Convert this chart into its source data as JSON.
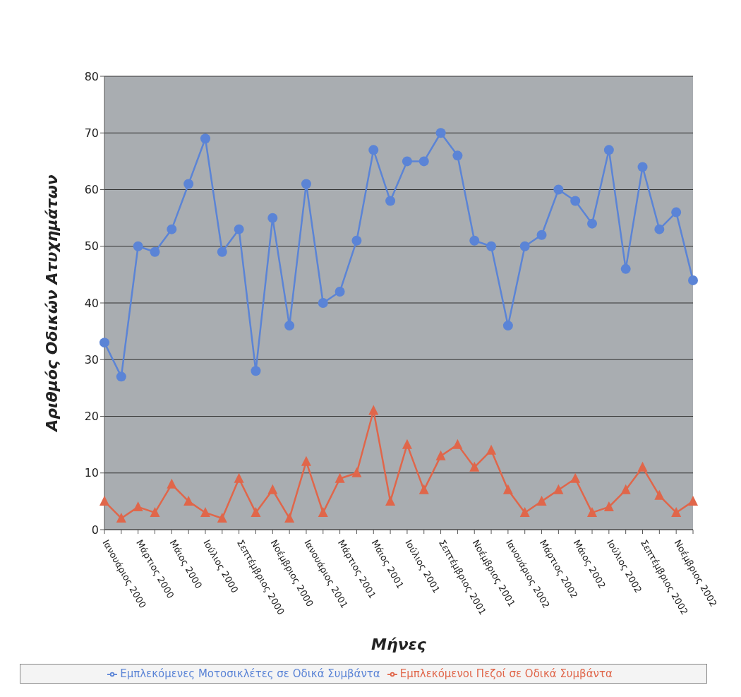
{
  "chart_data": {
    "type": "line",
    "xlabel": "Μήνες",
    "ylabel": "Αριθμός Οδικών Ατυχημάτων",
    "categories": [
      "Ιανουάριος 2000",
      null,
      "Μάρτιος 2000",
      null,
      "Μάιος 2000",
      null,
      "Ιούλιος 2000",
      null,
      "Σεπτέμβριος 2000",
      null,
      "Νοέμβριος 2000",
      null,
      "Ιανουάριος 2001",
      null,
      "Μάρτιος 2001",
      null,
      "Μάιος 2001",
      null,
      "Ιούλιος 2001",
      null,
      "Σεπτέμβριος 2001",
      null,
      "Νοέμβριος 2001",
      null,
      "Ιανουάριος 2002",
      null,
      "Μάρτιος 2002",
      null,
      "Μάιος 2002",
      null,
      "Ιούλιος 2002",
      null,
      "Σεπτέμβριος 2002",
      null,
      "Νοέμβριος 2002",
      null
    ],
    "series": [
      {
        "name": "Εμπλεκόμενοι Πεζοί σε Οδικά Συμβάντα",
        "color": "#e0664a",
        "marker": "triangle",
        "values": [
          5,
          2,
          4,
          3,
          8,
          5,
          3,
          2,
          9,
          3,
          7,
          2,
          12,
          3,
          9,
          10,
          21,
          5,
          15,
          7,
          13,
          15,
          11,
          14,
          7,
          3,
          5,
          7,
          9,
          3,
          4,
          7,
          11,
          6,
          3,
          5
        ]
      },
      {
        "name": "Εμπλεκόμενες Μοτοσικλέτες σε Οδικά Συμβάντα",
        "color": "#5b84d6",
        "marker": "circle",
        "values": [
          33,
          27,
          50,
          49,
          53,
          61,
          69,
          49,
          53,
          28,
          55,
          36,
          61,
          40,
          42,
          51,
          67,
          58,
          65,
          65,
          70,
          66,
          51,
          50,
          36,
          50,
          52,
          60,
          58,
          54,
          67,
          46,
          64,
          53,
          56,
          44
        ]
      }
    ],
    "ylim": [
      0,
      80
    ],
    "yticks": [
      0,
      10,
      20,
      30,
      40,
      50,
      60,
      70,
      80
    ],
    "grid": "y",
    "legend": "bottom"
  }
}
